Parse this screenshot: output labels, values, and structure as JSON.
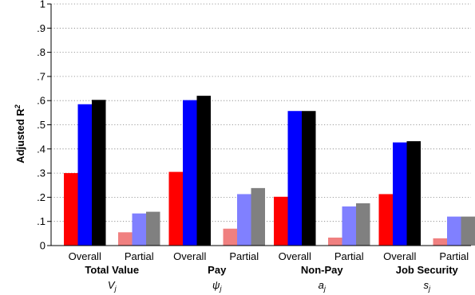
{
  "chart_data": {
    "type": "bar",
    "ylabel": "Adjusted R",
    "ylabel_sup": "2",
    "ylim": [
      0,
      1
    ],
    "yticks": [
      "0",
      ".1",
      ".2",
      ".3",
      ".4",
      ".5",
      ".6",
      ".7",
      ".8",
      ".9",
      "1"
    ],
    "grid": "horizontal dotted",
    "bar_colors": {
      "Overall": [
        "#ff0000",
        "#0000ff",
        "#000000"
      ],
      "Partial": [
        "#f08080",
        "#8080ff",
        "#808080"
      ]
    },
    "groups": [
      {
        "title": "Total Value",
        "symbol": "V",
        "subscript": "j",
        "categories": [
          {
            "label": "Overall",
            "values": [
              0.3,
              0.585,
              0.603
            ]
          },
          {
            "label": "Partial",
            "values": [
              0.055,
              0.133,
              0.14
            ]
          }
        ]
      },
      {
        "title": "Pay",
        "symbol": "ψ",
        "subscript": "j",
        "categories": [
          {
            "label": "Overall",
            "values": [
              0.305,
              0.602,
              0.62
            ]
          },
          {
            "label": "Partial",
            "values": [
              0.07,
              0.213,
              0.238
            ]
          }
        ]
      },
      {
        "title": "Non-Pay",
        "symbol": "a",
        "subscript": "j",
        "categories": [
          {
            "label": "Overall",
            "values": [
              0.202,
              0.557,
              0.557
            ]
          },
          {
            "label": "Partial",
            "values": [
              0.033,
              0.162,
              0.175
            ]
          }
        ]
      },
      {
        "title": "Job Security",
        "symbol": "s",
        "subscript": "j",
        "categories": [
          {
            "label": "Overall",
            "values": [
              0.213,
              0.427,
              0.432
            ]
          },
          {
            "label": "Partial",
            "values": [
              0.03,
              0.12,
              0.12
            ]
          }
        ]
      }
    ]
  }
}
